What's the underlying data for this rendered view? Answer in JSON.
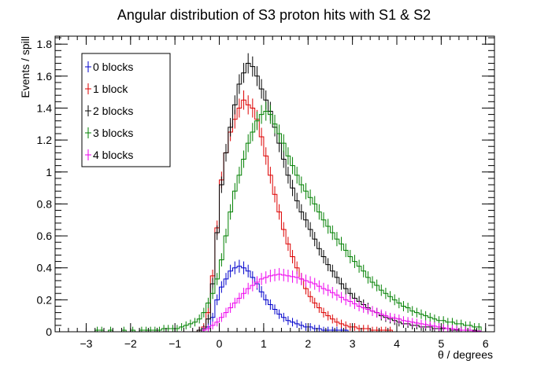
{
  "chart_data": {
    "type": "line",
    "title": "Angular distribution of S3 proton hits with S1 & S2",
    "xlabel": "θ / degrees",
    "ylabel": "Events / spill",
    "xlim": [
      -3.7,
      6.2
    ],
    "ylim": [
      0,
      1.85
    ],
    "x_ticks": [
      -3,
      -2,
      -1,
      0,
      1,
      2,
      3,
      4,
      5,
      6
    ],
    "x_tick_labels": [
      "−3",
      "−2",
      "−1",
      "0",
      "1",
      "2",
      "3",
      "4",
      "5",
      "6"
    ],
    "y_ticks": [
      0,
      0.2,
      0.4,
      0.6,
      0.8,
      1,
      1.2,
      1.4,
      1.6,
      1.8
    ],
    "y_tick_labels": [
      "0",
      "0.2",
      "0.4",
      "0.6",
      "0.8",
      "1",
      "1.2",
      "1.4",
      "1.6",
      "1.8"
    ],
    "legend_position": "top-left",
    "bin_width": 0.1,
    "x": [
      -3.65,
      -3.55,
      -3.45,
      -3.35,
      -3.25,
      -3.15,
      -3.05,
      -2.95,
      -2.85,
      -2.75,
      -2.65,
      -2.55,
      -2.45,
      -2.35,
      -2.25,
      -2.15,
      -2.05,
      -1.95,
      -1.85,
      -1.75,
      -1.65,
      -1.55,
      -1.45,
      -1.35,
      -1.25,
      -1.15,
      -1.05,
      -0.95,
      -0.85,
      -0.75,
      -0.65,
      -0.55,
      -0.45,
      -0.35,
      -0.25,
      -0.15,
      -0.05,
      0.05,
      0.15,
      0.25,
      0.35,
      0.45,
      0.55,
      0.65,
      0.75,
      0.85,
      0.95,
      1.05,
      1.15,
      1.25,
      1.35,
      1.45,
      1.55,
      1.65,
      1.75,
      1.85,
      1.95,
      2.05,
      2.15,
      2.25,
      2.35,
      2.45,
      2.55,
      2.65,
      2.75,
      2.85,
      2.95,
      3.05,
      3.15,
      3.25,
      3.35,
      3.45,
      3.55,
      3.65,
      3.75,
      3.85,
      3.95,
      4.05,
      4.15,
      4.25,
      4.35,
      4.45,
      4.55,
      4.65,
      4.75,
      4.85,
      4.95,
      5.05,
      5.15,
      5.25,
      5.35,
      5.45,
      5.55,
      5.65,
      5.75,
      5.85,
      5.95,
      6.05,
      6.15
    ],
    "series": [
      {
        "name": "0 blocks",
        "color": "#0000cc",
        "values": [
          0,
          0,
          0,
          0,
          0,
          0,
          0,
          0,
          0,
          0,
          0,
          0,
          0,
          0,
          0,
          0,
          0,
          0,
          0,
          0,
          0,
          0,
          0,
          0,
          0,
          0,
          0,
          0,
          0,
          0,
          0,
          0,
          0,
          0.01,
          0.03,
          0.09,
          0.2,
          0.28,
          0.33,
          0.38,
          0.4,
          0.41,
          0.4,
          0.38,
          0.34,
          0.3,
          0.25,
          0.2,
          0.17,
          0.14,
          0.11,
          0.09,
          0.07,
          0.06,
          0.05,
          0.04,
          0.03,
          0.03,
          0.02,
          0.02,
          0.01,
          0.01,
          0.01,
          0.01,
          0.01,
          0.01,
          0,
          0,
          0,
          0,
          0,
          0,
          0,
          0,
          0,
          0,
          0,
          0,
          0,
          0,
          0,
          0,
          0,
          0,
          0,
          0,
          0,
          0,
          0,
          0,
          0,
          0,
          0,
          0,
          0,
          0,
          0,
          0,
          0
        ]
      },
      {
        "name": "1 block",
        "color": "#dd0000",
        "values": [
          0,
          0,
          0,
          0,
          0,
          0,
          0,
          0,
          0,
          0,
          0,
          0,
          0,
          0,
          0,
          0,
          0,
          0,
          0,
          0,
          0,
          0,
          0,
          0,
          0,
          0,
          0,
          0,
          0,
          0,
          0,
          0,
          0.01,
          0.03,
          0.12,
          0.35,
          0.65,
          0.95,
          1.12,
          1.25,
          1.33,
          1.4,
          1.45,
          1.42,
          1.4,
          1.33,
          1.22,
          1.1,
          0.98,
          0.86,
          0.75,
          0.64,
          0.55,
          0.47,
          0.4,
          0.33,
          0.27,
          0.22,
          0.18,
          0.15,
          0.12,
          0.1,
          0.08,
          0.06,
          0.05,
          0.04,
          0.03,
          0.03,
          0.02,
          0.02,
          0.02,
          0.01,
          0.01,
          0.01,
          0.01,
          0.01,
          0,
          0,
          0,
          0,
          0,
          0,
          0,
          0,
          0,
          0,
          0,
          0,
          0,
          0,
          0,
          0,
          0,
          0,
          0,
          0,
          0,
          0,
          0
        ]
      },
      {
        "name": "2 blocks",
        "color": "#000000",
        "values": [
          0,
          0,
          0,
          0,
          0,
          0,
          0,
          0,
          0,
          0,
          0,
          0,
          0,
          0,
          0,
          0,
          0,
          0,
          0,
          0,
          0,
          0,
          0,
          0,
          0,
          0,
          0,
          0,
          0,
          0,
          0,
          0,
          0.01,
          0.02,
          0.08,
          0.3,
          0.62,
          0.92,
          1.12,
          1.28,
          1.42,
          1.55,
          1.62,
          1.68,
          1.66,
          1.6,
          1.52,
          1.45,
          1.38,
          1.28,
          1.18,
          1.08,
          0.98,
          0.9,
          0.82,
          0.75,
          0.7,
          0.64,
          0.58,
          0.52,
          0.47,
          0.42,
          0.38,
          0.34,
          0.3,
          0.27,
          0.24,
          0.21,
          0.19,
          0.17,
          0.15,
          0.13,
          0.12,
          0.1,
          0.09,
          0.08,
          0.07,
          0.06,
          0.05,
          0.05,
          0.04,
          0.04,
          0.03,
          0.03,
          0.03,
          0.02,
          0.02,
          0.02,
          0.02,
          0.01,
          0.01,
          0.01,
          0.01,
          0.01,
          0.01,
          0,
          0,
          0,
          0
        ]
      },
      {
        "name": "3 blocks",
        "color": "#008000",
        "values": [
          0,
          0,
          0,
          0,
          0,
          0,
          0,
          0,
          0,
          0.01,
          0.01,
          0,
          0.01,
          0,
          0,
          0.01,
          0,
          0.01,
          0,
          0.01,
          0.01,
          0.01,
          0.01,
          0.01,
          0.02,
          0.02,
          0.02,
          0.02,
          0.03,
          0.04,
          0.05,
          0.06,
          0.08,
          0.12,
          0.18,
          0.24,
          0.33,
          0.45,
          0.6,
          0.75,
          0.88,
          0.98,
          1.08,
          1.18,
          1.25,
          1.32,
          1.36,
          1.38,
          1.36,
          1.3,
          1.24,
          1.18,
          1.1,
          1.04,
          0.98,
          0.92,
          0.88,
          0.84,
          0.8,
          0.75,
          0.7,
          0.66,
          0.62,
          0.58,
          0.55,
          0.51,
          0.47,
          0.44,
          0.41,
          0.38,
          0.34,
          0.31,
          0.29,
          0.26,
          0.24,
          0.22,
          0.2,
          0.18,
          0.16,
          0.15,
          0.13,
          0.12,
          0.11,
          0.1,
          0.09,
          0.08,
          0.07,
          0.07,
          0.06,
          0.06,
          0.05,
          0.05,
          0.04,
          0.04,
          0.03,
          0.03,
          0,
          0,
          0
        ]
      },
      {
        "name": "4 blocks",
        "color": "#ee00ee",
        "values": [
          0,
          0,
          0,
          0,
          0,
          0,
          0,
          0,
          0,
          0,
          0,
          0,
          0,
          0,
          0,
          0,
          0,
          0,
          0,
          0,
          0,
          0,
          0,
          0,
          0,
          0,
          0,
          0,
          0,
          0,
          0,
          0,
          0,
          0.01,
          0.02,
          0.04,
          0.06,
          0.09,
          0.12,
          0.15,
          0.18,
          0.21,
          0.24,
          0.27,
          0.29,
          0.31,
          0.33,
          0.34,
          0.35,
          0.355,
          0.36,
          0.355,
          0.35,
          0.345,
          0.34,
          0.33,
          0.32,
          0.31,
          0.3,
          0.285,
          0.27,
          0.26,
          0.245,
          0.23,
          0.215,
          0.2,
          0.19,
          0.175,
          0.16,
          0.15,
          0.14,
          0.13,
          0.12,
          0.11,
          0.1,
          0.09,
          0.085,
          0.08,
          0.07,
          0.065,
          0.06,
          0.055,
          0.05,
          0.045,
          0.04,
          0.035,
          0.03,
          0.025,
          0.02,
          0.02,
          0.015,
          0.01,
          0.01,
          0.01,
          0.005,
          0.005,
          0,
          0,
          0
        ]
      }
    ]
  }
}
